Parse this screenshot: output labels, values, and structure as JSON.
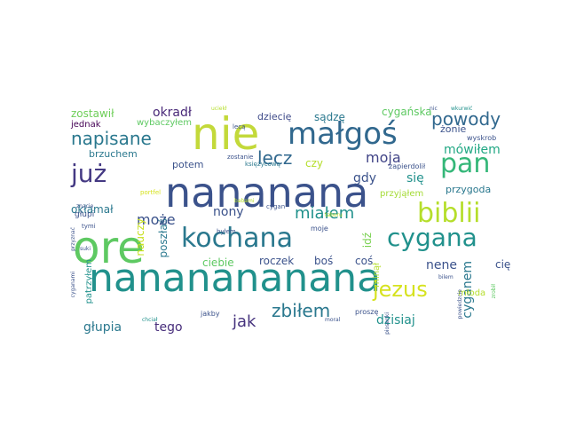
{
  "palette": {
    "yellow": "#d6e21f",
    "green": "#5ec962",
    "teal": "#21918c",
    "blue": "#3b528b",
    "purple": "#440154",
    "mint": "#7ad151",
    "cyan": "#2a9d8f"
  },
  "words": [
    {
      "id": "w0",
      "text": "ore",
      "color": "#5ec962"
    },
    {
      "id": "w1",
      "text": "nananana",
      "color": "#3b528b"
    },
    {
      "id": "w2",
      "text": "nananananana",
      "color": "#21918c"
    },
    {
      "id": "w3",
      "text": "nie",
      "color": "#c3d93a"
    },
    {
      "id": "w4",
      "text": "małgoś",
      "color": "#31688e"
    },
    {
      "id": "w5",
      "text": "kochana",
      "color": "#2a788e"
    },
    {
      "id": "w6",
      "text": "biblii",
      "color": "#b5de2b"
    },
    {
      "id": "w7",
      "text": "cygana",
      "color": "#21918c"
    },
    {
      "id": "w8",
      "text": "jezus",
      "color": "#d6e21f"
    },
    {
      "id": "w9",
      "text": "pan",
      "color": "#35b779"
    },
    {
      "id": "w10",
      "text": "już",
      "color": "#443983"
    },
    {
      "id": "w11",
      "text": "lecz",
      "color": "#31688e"
    },
    {
      "id": "w12",
      "text": "powody",
      "color": "#31688e"
    },
    {
      "id": "w13",
      "text": "napisane",
      "color": "#2a788e"
    },
    {
      "id": "w14",
      "text": "miałem",
      "color": "#21918c"
    },
    {
      "id": "w15",
      "text": "zbiłem",
      "color": "#2a788e"
    },
    {
      "id": "w16",
      "text": "może",
      "color": "#3b528b"
    },
    {
      "id": "w17",
      "text": "moja",
      "color": "#414487"
    },
    {
      "id": "w18",
      "text": "mówiłem",
      "color": "#22a884"
    },
    {
      "id": "w19",
      "text": "jak",
      "color": "#46337e"
    },
    {
      "id": "w20",
      "text": "głupia",
      "color": "#2a788e"
    },
    {
      "id": "w21",
      "text": "tego",
      "color": "#472d7b"
    },
    {
      "id": "w22",
      "text": "dzisiaj",
      "color": "#21918c"
    },
    {
      "id": "w23",
      "text": "nene",
      "color": "#3b528b"
    },
    {
      "id": "w24",
      "text": "cyganem",
      "color": "#2a788e"
    },
    {
      "id": "w25",
      "text": "nony",
      "color": "#3b528b"
    },
    {
      "id": "w26",
      "text": "zostawił",
      "color": "#6ece58"
    },
    {
      "id": "w27",
      "text": "okradł",
      "color": "#482878"
    },
    {
      "id": "w28",
      "text": "dziecię",
      "color": "#3e4a89"
    },
    {
      "id": "w29",
      "text": "sądzę",
      "color": "#2a788e"
    },
    {
      "id": "w30",
      "text": "cygańska",
      "color": "#5ec962"
    },
    {
      "id": "w31",
      "text": "jednak",
      "color": "#440154"
    },
    {
      "id": "w32",
      "text": "brzuchem",
      "color": "#2a788e"
    },
    {
      "id": "w33",
      "text": "potem",
      "color": "#3b528b"
    },
    {
      "id": "w34",
      "text": "gdy",
      "color": "#3b528b"
    },
    {
      "id": "w35",
      "text": "się",
      "color": "#21918c"
    },
    {
      "id": "w36",
      "text": "czy",
      "color": "#b5de2b"
    },
    {
      "id": "w37",
      "text": "przygoda",
      "color": "#2a788e"
    },
    {
      "id": "w38",
      "text": "okłamał",
      "color": "#2a788e"
    },
    {
      "id": "w39",
      "text": "nauczy",
      "color": "#c8e020"
    },
    {
      "id": "w40",
      "text": "poszłaś",
      "color": "#2a788e"
    },
    {
      "id": "w41",
      "text": "roczek",
      "color": "#3b528b"
    },
    {
      "id": "w42",
      "text": "boś",
      "color": "#3b528b"
    },
    {
      "id": "w43",
      "text": "coś",
      "color": "#3b528b"
    },
    {
      "id": "w44",
      "text": "idź",
      "color": "#7ad151"
    },
    {
      "id": "w45",
      "text": "ciebie",
      "color": "#5ec962"
    },
    {
      "id": "w46",
      "text": "cię",
      "color": "#3b528b"
    },
    {
      "id": "w47",
      "text": "minął",
      "color": "#b5de2b"
    },
    {
      "id": "w48",
      "text": "młoda",
      "color": "#b5de2b"
    },
    {
      "id": "w49",
      "text": "żonie",
      "color": "#3b528b"
    },
    {
      "id": "w50",
      "text": "przyjąłem",
      "color": "#a5db36"
    },
    {
      "id": "w51",
      "text": "wybaczyłem",
      "color": "#5ec962"
    },
    {
      "id": "w52",
      "text": "głupi",
      "color": "#3b528b"
    },
    {
      "id": "w53",
      "text": "patrzyłem",
      "color": "#21918c"
    },
    {
      "id": "w54",
      "text": "jakby",
      "color": "#3b528b"
    },
    {
      "id": "w55",
      "text": "proszę",
      "color": "#3b528b"
    },
    {
      "id": "w56",
      "text": "zapierdolił",
      "color": "#3b528b"
    },
    {
      "id": "w57",
      "text": "wyskrob",
      "color": "#3b528b"
    },
    {
      "id": "w58",
      "text": "księżycową",
      "color": "#2a788e"
    },
    {
      "id": "w59",
      "text": "zostanie",
      "color": "#3b528b"
    },
    {
      "id": "w60",
      "text": "znacie",
      "color": "#3b528b"
    },
    {
      "id": "w61",
      "text": "przyznać",
      "color": "#3b528b"
    },
    {
      "id": "w62",
      "text": "suki",
      "color": "#3b528b"
    },
    {
      "id": "w63",
      "text": "portfel",
      "color": "#d6e21f"
    },
    {
      "id": "w64",
      "text": "tymi",
      "color": "#3b528b"
    },
    {
      "id": "w65",
      "text": "cyganami",
      "color": "#3b528b"
    },
    {
      "id": "w66",
      "text": "chciał",
      "color": "#21918c"
    },
    {
      "id": "w67",
      "text": "jest",
      "color": "#3b528b"
    },
    {
      "id": "w68",
      "text": "byłem",
      "color": "#3b528b"
    },
    {
      "id": "w69",
      "text": "moje",
      "color": "#3b528b"
    },
    {
      "id": "w70",
      "text": "cygan",
      "color": "#3b528b"
    },
    {
      "id": "w71",
      "text": "lecą",
      "color": "#3b528b"
    },
    {
      "id": "w72",
      "text": "uciekł",
      "color": "#b5de2b"
    },
    {
      "id": "w73",
      "text": "bilem",
      "color": "#3b528b"
    },
    {
      "id": "w74",
      "text": "powiedzcie",
      "color": "#3b528b"
    },
    {
      "id": "w75",
      "text": "piosenki",
      "color": "#3b528b"
    },
    {
      "id": "w76",
      "text": "moral",
      "color": "#3b528b"
    },
    {
      "id": "w77",
      "text": "nic",
      "color": "#3b528b"
    },
    {
      "id": "w78",
      "text": "wkurwić",
      "color": "#21918c"
    },
    {
      "id": "w79",
      "text": "babami",
      "color": "#b5de2b"
    },
    {
      "id": "w80",
      "text": "taboru",
      "color": "#b5de2b"
    },
    {
      "id": "w81",
      "text": "zrobił",
      "color": "#5ec962"
    }
  ]
}
